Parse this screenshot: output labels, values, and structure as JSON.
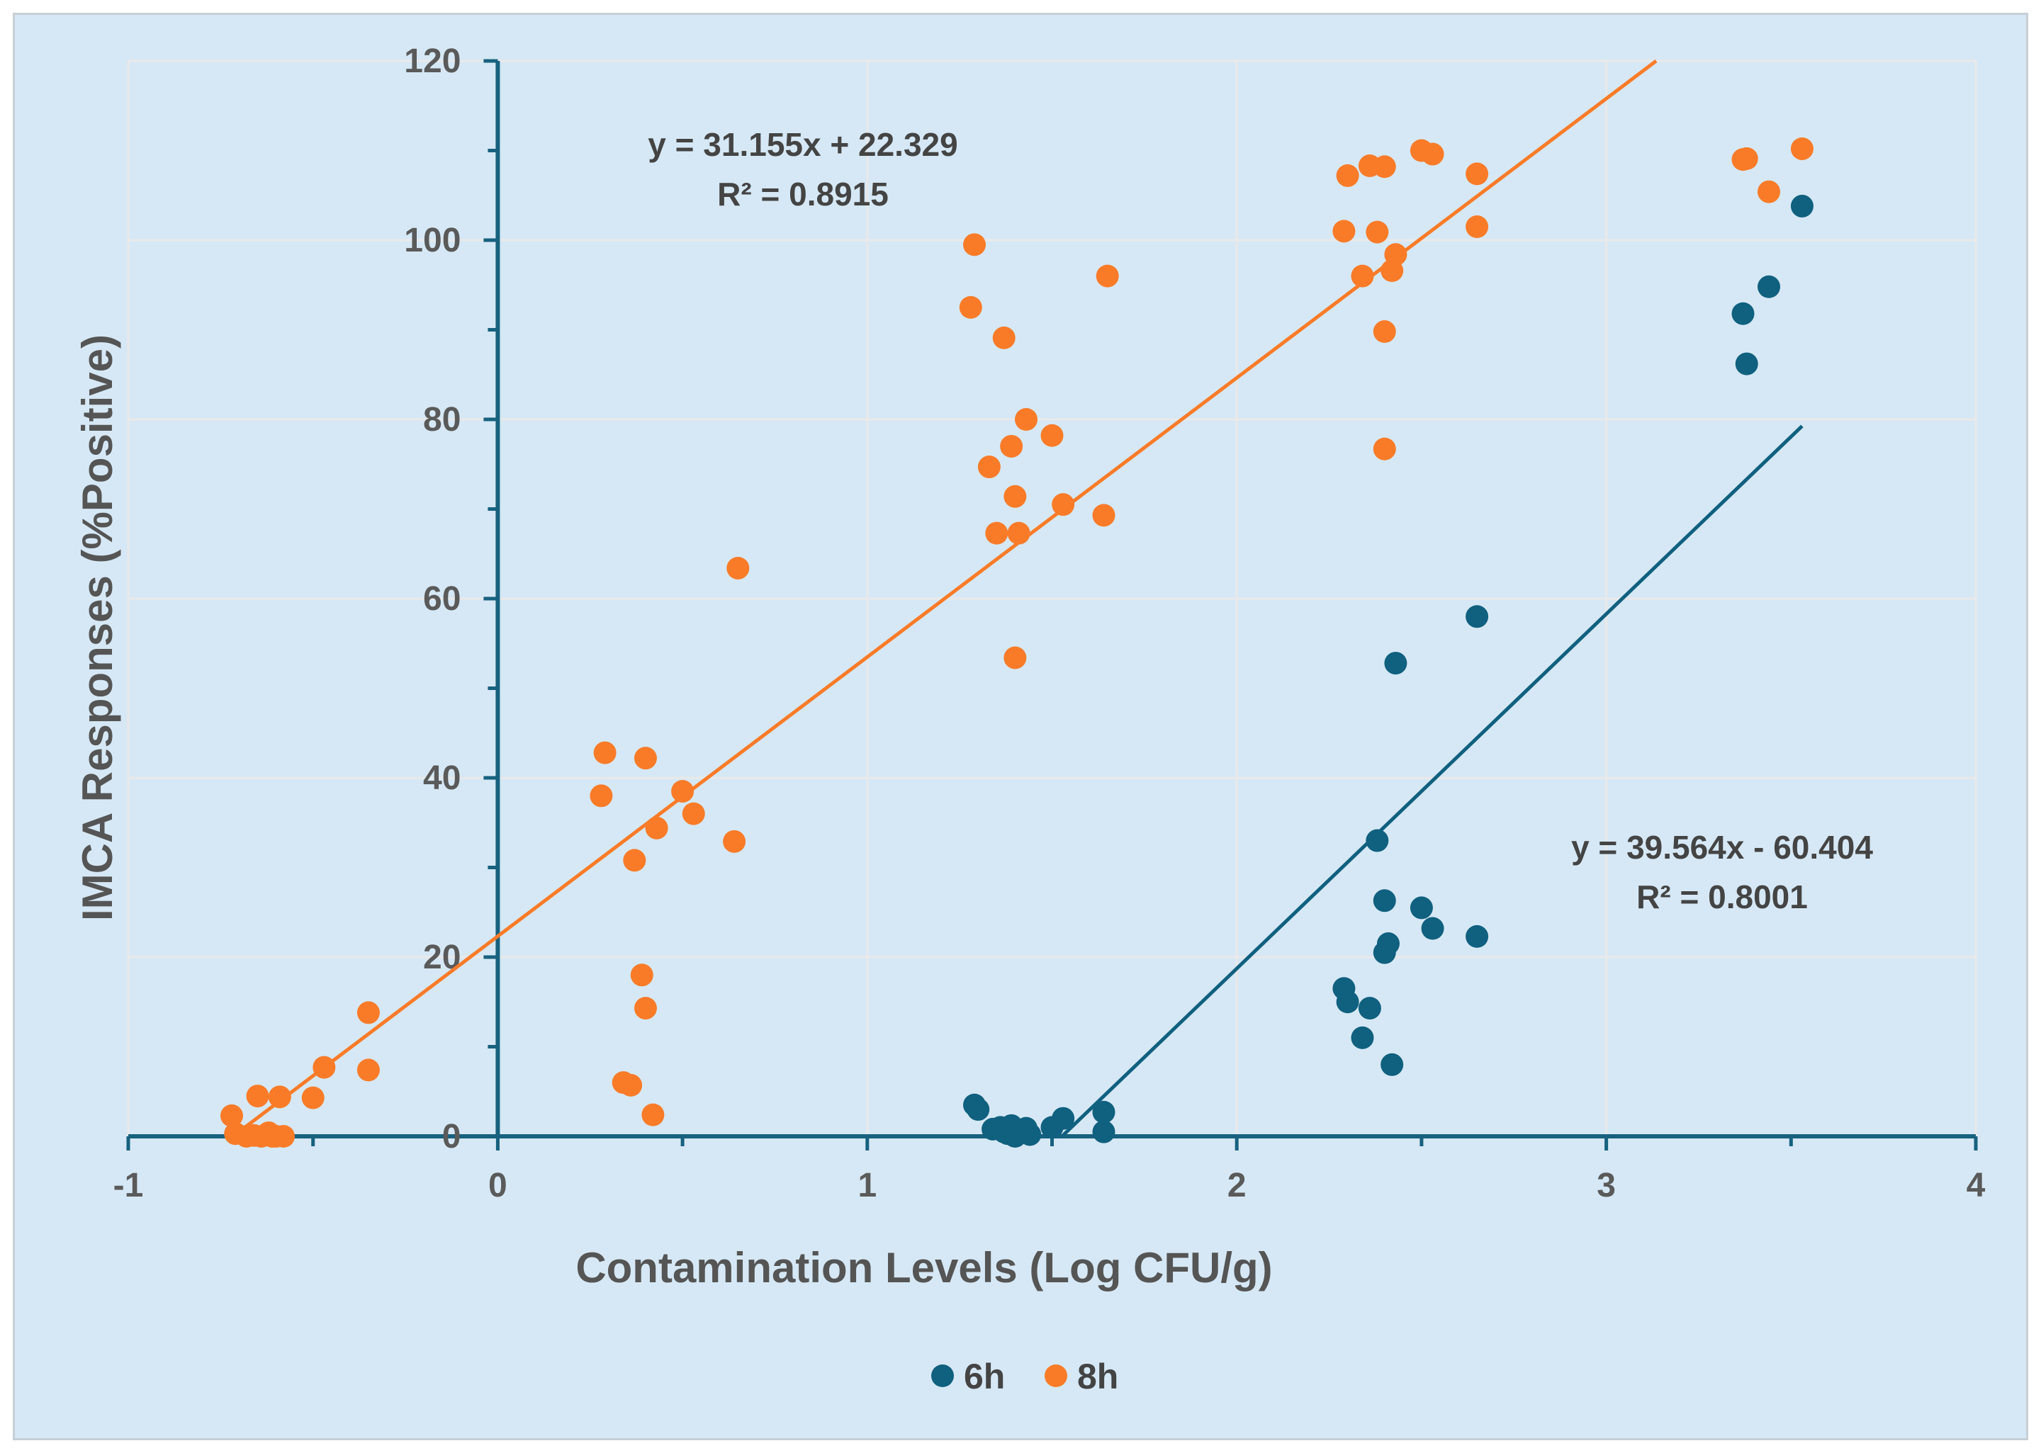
{
  "chart_data": {
    "type": "scatter",
    "xlabel": "Contamination Levels  (Log CFU/g)",
    "ylabel": "IMCA Responses (%Positive)",
    "xlim": [
      -1,
      4
    ],
    "ylim": [
      0,
      120
    ],
    "xticks": [
      "-1",
      "0",
      "1",
      "2",
      "3",
      "4"
    ],
    "yticks": [
      "0",
      "20",
      "40",
      "60",
      "80",
      "100",
      "120"
    ],
    "grid": true,
    "legend_position": "bottom-center",
    "colors": {
      "6h": "#10607f",
      "8h": "#f97b28",
      "axis": "#17617f",
      "grid": "#e9e9e9"
    },
    "series": [
      {
        "name": "6h",
        "points": [
          [
            1.29,
            3.5
          ],
          [
            1.3,
            3.0
          ],
          [
            1.34,
            0.8
          ],
          [
            1.36,
            1.0
          ],
          [
            1.37,
            0.5
          ],
          [
            1.38,
            0.3
          ],
          [
            1.39,
            1.2
          ],
          [
            1.4,
            0.0
          ],
          [
            1.41,
            0.6
          ],
          [
            1.42,
            0.4
          ],
          [
            1.43,
            0.9
          ],
          [
            1.44,
            0.2
          ],
          [
            1.5,
            1.0
          ],
          [
            1.53,
            2.0
          ],
          [
            1.64,
            2.7
          ],
          [
            1.64,
            0.5
          ],
          [
            2.29,
            16.5
          ],
          [
            2.3,
            15.0
          ],
          [
            2.34,
            11.0
          ],
          [
            2.36,
            14.3
          ],
          [
            2.38,
            33.0
          ],
          [
            2.4,
            26.3
          ],
          [
            2.4,
            20.5
          ],
          [
            2.41,
            21.5
          ],
          [
            2.42,
            8.0
          ],
          [
            2.43,
            52.8
          ],
          [
            2.5,
            25.5
          ],
          [
            2.53,
            23.2
          ],
          [
            2.65,
            58.0
          ],
          [
            2.65,
            22.3
          ],
          [
            3.37,
            91.8
          ],
          [
            3.38,
            86.2
          ],
          [
            3.44,
            94.8
          ],
          [
            3.53,
            103.8
          ]
        ],
        "trendline": {
          "x_from": 1.53,
          "x_to": 3.53,
          "equation": "y = 39.564x - 60.404",
          "r2": "R² = 0.8001",
          "slope": 39.564,
          "intercept": -60.404
        }
      },
      {
        "name": "8h",
        "points": [
          [
            -0.72,
            2.3
          ],
          [
            -0.71,
            0.3
          ],
          [
            -0.68,
            0.0
          ],
          [
            -0.66,
            0.1
          ],
          [
            -0.64,
            0.0
          ],
          [
            -0.62,
            0.4
          ],
          [
            -0.61,
            0.0
          ],
          [
            -0.6,
            0.0
          ],
          [
            -0.58,
            0.0
          ],
          [
            -0.65,
            4.5
          ],
          [
            -0.59,
            4.4
          ],
          [
            -0.5,
            4.3
          ],
          [
            -0.47,
            7.7
          ],
          [
            -0.35,
            13.8
          ],
          [
            -0.35,
            7.4
          ],
          [
            0.28,
            38.0
          ],
          [
            0.29,
            42.8
          ],
          [
            0.34,
            6.0
          ],
          [
            0.36,
            5.7
          ],
          [
            0.37,
            30.8
          ],
          [
            0.39,
            18.0
          ],
          [
            0.4,
            14.3
          ],
          [
            0.4,
            42.2
          ],
          [
            0.42,
            2.4
          ],
          [
            0.43,
            34.4
          ],
          [
            0.5,
            38.5
          ],
          [
            0.53,
            36.0
          ],
          [
            0.64,
            32.9
          ],
          [
            0.65,
            63.4
          ],
          [
            1.28,
            92.5
          ],
          [
            1.29,
            99.5
          ],
          [
            1.33,
            74.7
          ],
          [
            1.35,
            67.3
          ],
          [
            1.37,
            89.1
          ],
          [
            1.39,
            77.0
          ],
          [
            1.4,
            71.4
          ],
          [
            1.4,
            53.4
          ],
          [
            1.41,
            67.3
          ],
          [
            1.43,
            80.0
          ],
          [
            1.5,
            78.2
          ],
          [
            1.53,
            70.5
          ],
          [
            1.64,
            69.3
          ],
          [
            1.65,
            96.0
          ],
          [
            2.29,
            101.0
          ],
          [
            2.3,
            107.2
          ],
          [
            2.34,
            96.0
          ],
          [
            2.36,
            108.3
          ],
          [
            2.38,
            100.9
          ],
          [
            2.4,
            108.2
          ],
          [
            2.4,
            89.8
          ],
          [
            2.4,
            76.7
          ],
          [
            2.42,
            96.6
          ],
          [
            2.43,
            98.4
          ],
          [
            2.5,
            110.0
          ],
          [
            2.53,
            109.6
          ],
          [
            2.65,
            107.4
          ],
          [
            2.65,
            101.5
          ],
          [
            3.37,
            109.0
          ],
          [
            3.38,
            109.1
          ],
          [
            3.44,
            105.4
          ],
          [
            3.53,
            110.2
          ]
        ],
        "trendline": {
          "x_from": -0.72,
          "x_to": 3.15,
          "equation": "y = 31.155x + 22.329",
          "r2": "R² = 0.8915",
          "slope": 31.155,
          "intercept": 22.329
        }
      }
    ]
  }
}
